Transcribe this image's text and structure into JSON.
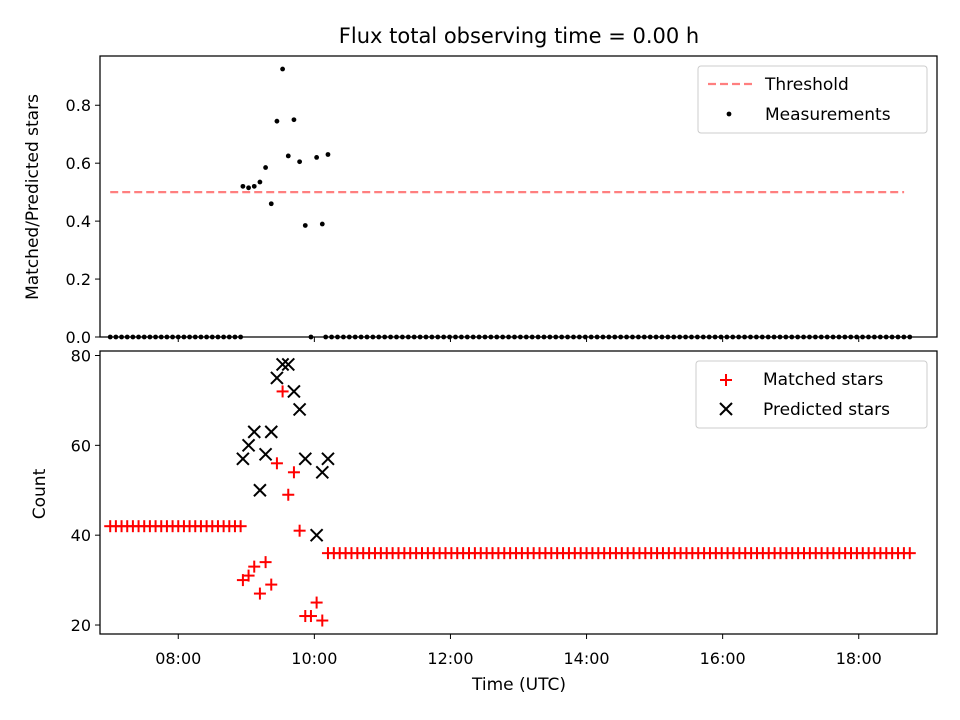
{
  "title": "Flux total observing time = 0.00 h",
  "colors": {
    "threshold": "#ff7f7f",
    "measurements": "#000000",
    "matched": "#ff0000",
    "predicted": "#000000"
  },
  "chart_data": [
    {
      "type": "scatter",
      "ylabel": "Matched/Predicted stars",
      "xlim": [
        "06:51",
        "19:09"
      ],
      "ylim": [
        0,
        0.97
      ],
      "yticks": [
        "0.0",
        "0.2",
        "0.4",
        "0.6",
        "0.8"
      ],
      "ytick_values": [
        0,
        0.2,
        0.4,
        0.6,
        0.8
      ],
      "legend_position": "top-right",
      "legend": [
        "Threshold",
        "Measurements"
      ],
      "threshold": {
        "name": "Threshold",
        "value": 0.5,
        "x": [
          "07:00",
          "18:40"
        ]
      },
      "measurements": {
        "name": "Measurements",
        "zero_x_ranges": [
          [
            "07:00",
            "08:55",
            24
          ],
          [
            "10:10",
            "18:45",
            100
          ]
        ],
        "points": [
          [
            "08:57",
            0.52
          ],
          [
            "09:02",
            0.515
          ],
          [
            "09:07",
            0.52
          ],
          [
            "09:12",
            0.535
          ],
          [
            "09:17",
            0.585
          ],
          [
            "09:22",
            0.46
          ],
          [
            "09:27",
            0.745
          ],
          [
            "09:32",
            0.925
          ],
          [
            "09:37",
            0.625
          ],
          [
            "09:42",
            0.75
          ],
          [
            "09:47",
            0.605
          ],
          [
            "09:52",
            0.385
          ],
          [
            "09:57",
            0.0
          ],
          [
            "10:02",
            0.62
          ],
          [
            "10:07",
            0.39
          ],
          [
            "10:12",
            0.63
          ]
        ]
      }
    },
    {
      "type": "scatter",
      "xlabel": "Time (UTC)",
      "ylabel": "Count",
      "xlim": [
        "06:51",
        "19:09"
      ],
      "ylim": [
        18,
        81
      ],
      "xticks": [
        "08:00",
        "10:00",
        "12:00",
        "14:00",
        "16:00",
        "18:00"
      ],
      "yticks": [
        "20",
        "40",
        "60",
        "80"
      ],
      "ytick_values": [
        20,
        40,
        60,
        80
      ],
      "legend_position": "top-right",
      "legend": [
        "Matched stars",
        "Predicted stars"
      ],
      "matched": {
        "name": "Matched stars",
        "constant_runs": [
          [
            "07:00",
            "08:55",
            24,
            42
          ],
          [
            "10:12",
            "18:45",
            100,
            36
          ]
        ],
        "points": [
          [
            "08:57",
            30
          ],
          [
            "09:02",
            31
          ],
          [
            "09:07",
            33
          ],
          [
            "09:12",
            27
          ],
          [
            "09:17",
            34
          ],
          [
            "09:22",
            29
          ],
          [
            "09:27",
            56
          ],
          [
            "09:32",
            72
          ],
          [
            "09:37",
            49
          ],
          [
            "09:42",
            54
          ],
          [
            "09:47",
            41
          ],
          [
            "09:52",
            22
          ],
          [
            "09:57",
            22
          ],
          [
            "10:02",
            25
          ],
          [
            "10:07",
            21
          ]
        ]
      },
      "predicted": {
        "name": "Predicted stars",
        "points": [
          [
            "08:57",
            57
          ],
          [
            "09:02",
            60
          ],
          [
            "09:07",
            63
          ],
          [
            "09:12",
            50
          ],
          [
            "09:17",
            58
          ],
          [
            "09:22",
            63
          ],
          [
            "09:27",
            75
          ],
          [
            "09:32",
            78
          ],
          [
            "09:37",
            78
          ],
          [
            "09:42",
            72
          ],
          [
            "09:47",
            68
          ],
          [
            "09:52",
            57
          ],
          [
            "10:02",
            40
          ],
          [
            "10:07",
            54
          ],
          [
            "10:12",
            57
          ]
        ]
      }
    }
  ]
}
